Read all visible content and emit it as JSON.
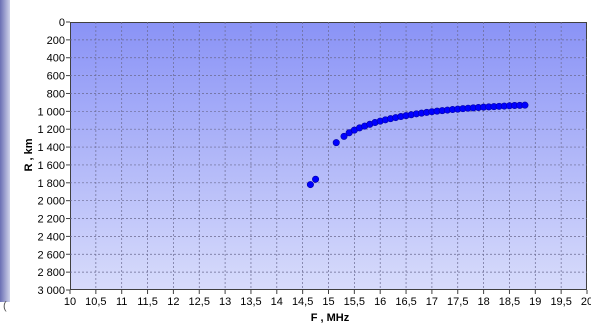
{
  "chart_data": {
    "type": "scatter",
    "title": "",
    "xlabel": "F , MHz",
    "ylabel": "R , km",
    "xlim": [
      10,
      20
    ],
    "ylim": [
      0,
      3000
    ],
    "y_inverted": true,
    "grid": true,
    "x_ticks": [
      "10",
      "10,5",
      "11",
      "11,5",
      "12",
      "12,5",
      "13",
      "13,5",
      "14",
      "14,5",
      "15",
      "15,5",
      "16",
      "16,5",
      "17",
      "17,5",
      "18",
      "18,5",
      "19",
      "19,5",
      "20"
    ],
    "y_ticks": [
      "0",
      "200",
      "400",
      "600",
      "800",
      "1 000",
      "1 200",
      "1 400",
      "1 600",
      "1 800",
      "2 000",
      "2 200",
      "2 400",
      "2 600",
      "2 800",
      "3 000"
    ],
    "marker_color": "#0000ff",
    "series": [
      {
        "x": [
          14.65,
          14.75,
          15.15,
          15.3,
          15.4,
          15.5,
          15.6,
          15.7,
          15.8,
          15.9,
          16.0,
          16.1,
          16.2,
          16.3,
          16.4,
          16.5,
          16.6,
          16.7,
          16.8,
          16.9,
          17.0,
          17.1,
          17.2,
          17.3,
          17.4,
          17.5,
          17.6,
          17.7,
          17.8,
          17.9,
          18.0,
          18.1,
          18.2,
          18.3,
          18.4,
          18.5,
          18.6,
          18.7,
          18.8
        ],
        "y": [
          1820,
          1760,
          1350,
          1280,
          1240,
          1210,
          1185,
          1165,
          1145,
          1125,
          1110,
          1095,
          1082,
          1070,
          1058,
          1048,
          1038,
          1028,
          1020,
          1012,
          1004,
          998,
          992,
          986,
          980,
          975,
          970,
          965,
          961,
          957,
          953,
          950,
          947,
          944,
          941,
          938,
          935,
          933,
          931
        ]
      }
    ]
  }
}
